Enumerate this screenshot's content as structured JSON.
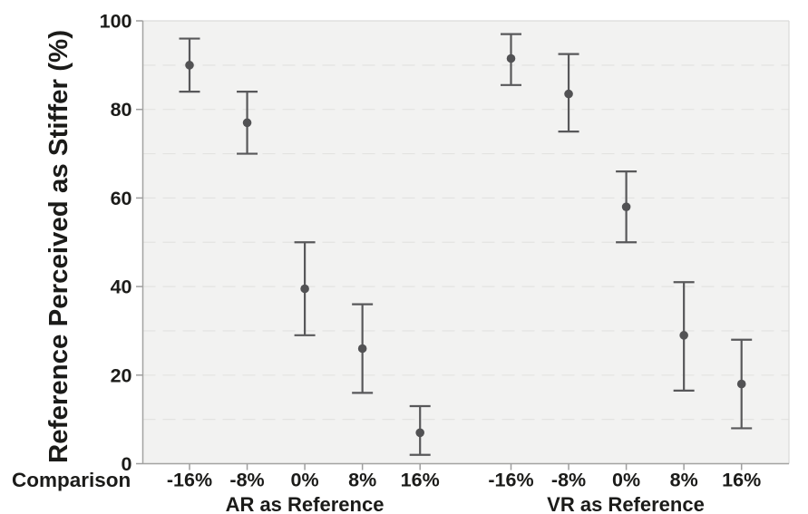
{
  "chart_data": {
    "type": "scatter",
    "subtype": "point-estimates-with-error-bars",
    "title": "",
    "ylabel": "Reference Perceived as Stiffer (%)",
    "xlabel": "Comparison",
    "ylim": [
      0,
      100
    ],
    "yticks": [
      0,
      20,
      40,
      60,
      80,
      100
    ],
    "gridline_values": [
      10,
      20,
      30,
      40,
      50,
      60,
      70,
      80,
      90
    ],
    "gridline_style": "dashed",
    "legend": "none",
    "groups": [
      {
        "label": "AR as Reference",
        "categories": [
          "-16%",
          "-8%",
          "0%",
          "8%",
          "16%"
        ],
        "points": [
          {
            "category": "-16%",
            "mean": 90,
            "ci_low": 84,
            "ci_high": 96
          },
          {
            "category": "-8%",
            "mean": 77,
            "ci_low": 70,
            "ci_high": 84
          },
          {
            "category": "0%",
            "mean": 39.5,
            "ci_low": 29,
            "ci_high": 50
          },
          {
            "category": "8%",
            "mean": 26,
            "ci_low": 16,
            "ci_high": 36
          },
          {
            "category": "16%",
            "mean": 7,
            "ci_low": 2,
            "ci_high": 13
          }
        ]
      },
      {
        "label": "VR as Reference",
        "categories": [
          "-16%",
          "-8%",
          "0%",
          "8%",
          "16%"
        ],
        "points": [
          {
            "category": "-16%",
            "mean": 91.5,
            "ci_low": 85.5,
            "ci_high": 97
          },
          {
            "category": "-8%",
            "mean": 83.5,
            "ci_low": 75,
            "ci_high": 92.5
          },
          {
            "category": "0%",
            "mean": 58,
            "ci_low": 50,
            "ci_high": 66
          },
          {
            "category": "8%",
            "mean": 29,
            "ci_low": 16.5,
            "ci_high": 41
          },
          {
            "category": "16%",
            "mean": 18,
            "ci_low": 8,
            "ci_high": 28
          }
        ]
      }
    ],
    "colors": {
      "marker": "#525254",
      "errorbar": "#58585a",
      "text": "#1b1b19",
      "axis_line": "#a3a3a1",
      "tick_mark": "#9e9e9e",
      "plot_background": "#f2f2f1",
      "grid": "#e3e3e1",
      "plot_border": "#dbdbda",
      "page_background": "#ffffff"
    }
  }
}
